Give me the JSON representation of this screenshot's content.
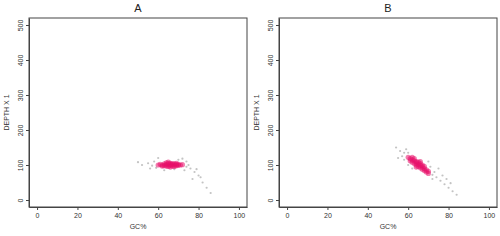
{
  "chart_data": [
    {
      "type": "scatter",
      "title": "A",
      "x_label": "GC%",
      "y_label": "DEPTH X 1",
      "xlim": [
        -4,
        104
      ],
      "ylim": [
        -20,
        520
      ],
      "xticks": [
        0,
        20,
        40,
        60,
        80,
        100
      ],
      "yticks": [
        0,
        100,
        200,
        300,
        400,
        500
      ],
      "series": [
        {
          "color": "#bdbdbd",
          "x": [
            55,
            57,
            58,
            59,
            52,
            74,
            76,
            75,
            73,
            78,
            80,
            77,
            82,
            84,
            86,
            72,
            60,
            56,
            70,
            79,
            50,
            63,
            68,
            81,
            74
          ],
          "values": [
            105,
            98,
            110,
            92,
            100,
            95,
            90,
            100,
            85,
            80,
            70,
            60,
            50,
            35,
            20,
            118,
            120,
            90,
            115,
            88,
            108,
            85,
            88,
            65,
            110
          ]
        },
        {
          "color": "#e8106a",
          "x": [
            62,
            63,
            63,
            64,
            64,
            65,
            65,
            65,
            66,
            66,
            66,
            67,
            67,
            67,
            68,
            68,
            68,
            69,
            69,
            70,
            70,
            71,
            61,
            62,
            64,
            66,
            69,
            72,
            60,
            65
          ],
          "values": [
            100,
            98,
            103,
            101,
            97,
            104,
            100,
            96,
            102,
            99,
            105,
            101,
            97,
            104,
            100,
            103,
            96,
            101,
            98,
            102,
            99,
            100,
            102,
            97,
            106,
            94,
            105,
            101,
            100,
            108
          ]
        }
      ]
    },
    {
      "type": "scatter",
      "title": "B",
      "x_label": "GC%",
      "y_label": "DEPTH X 1",
      "xlim": [
        -4,
        104
      ],
      "ylim": [
        -20,
        520
      ],
      "xticks": [
        0,
        20,
        40,
        60,
        80,
        100
      ],
      "yticks": [
        0,
        100,
        200,
        300,
        400,
        500
      ],
      "series": [
        {
          "color": "#bdbdbd",
          "x": [
            56,
            58,
            57,
            59,
            55,
            60,
            72,
            74,
            73,
            76,
            78,
            80,
            82,
            79,
            75,
            71,
            60,
            54,
            77,
            84,
            70,
            58,
            81,
            62,
            72
          ],
          "values": [
            140,
            135,
            125,
            145,
            120,
            135,
            72,
            65,
            80,
            55,
            45,
            35,
            25,
            60,
            90,
            95,
            100,
            150,
            70,
            15,
            110,
            115,
            48,
            90,
            60
          ]
        },
        {
          "color": "#e8106a",
          "x": [
            60,
            61,
            61,
            62,
            62,
            63,
            63,
            64,
            64,
            64,
            65,
            65,
            65,
            66,
            66,
            66,
            67,
            67,
            67,
            68,
            68,
            69,
            69,
            70,
            63,
            62,
            66,
            68,
            70,
            64
          ],
          "values": [
            122,
            118,
            112,
            115,
            108,
            112,
            104,
            106,
            100,
            110,
            102,
            96,
            108,
            98,
            92,
            104,
            95,
            88,
            100,
            90,
            84,
            86,
            80,
            82,
            118,
            122,
            110,
            96,
            76,
            94
          ]
        }
      ]
    }
  ]
}
